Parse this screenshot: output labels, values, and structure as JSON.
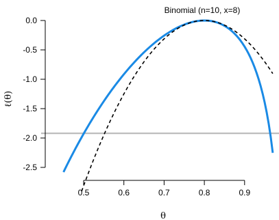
{
  "chart_data": {
    "type": "line",
    "title": "Binomial (n=10, x=8)",
    "xlabel": "θ",
    "ylabel": "ℓ(θ)",
    "xlim": [
      0.45,
      0.97
    ],
    "ylim": [
      -2.6,
      0.0
    ],
    "xticks": [
      0.5,
      0.6,
      0.7,
      0.8,
      0.9
    ],
    "yticks": [
      0.0,
      -0.5,
      -1.0,
      -1.5,
      -2.0,
      -2.5
    ],
    "xtick_labels": [
      "0.5",
      "0.6",
      "0.7",
      "0.8",
      "0.9"
    ],
    "ytick_labels": [
      "0.0",
      "-0.5",
      "-1.0",
      "-1.5",
      "-2.0",
      "-2.5"
    ],
    "n": 10,
    "x": 8,
    "mle": 0.8,
    "cutoff": -1.92,
    "colors": {
      "loglik": "#1a8ae5",
      "quadratic": "#000000",
      "cutoff": "#bdbdbd"
    },
    "series": [
      {
        "style": "solid",
        "color": "#1a8ae5",
        "x_range": [
          0.45,
          0.97
        ],
        "step": 0.005,
        "formula": "relative binomial log-likelihood"
      },
      {
        "style": "dashed",
        "color": "#000000",
        "x_range": [
          0.45,
          0.97
        ],
        "step": 0.005,
        "formula": "quadratic approximation"
      }
    ]
  }
}
